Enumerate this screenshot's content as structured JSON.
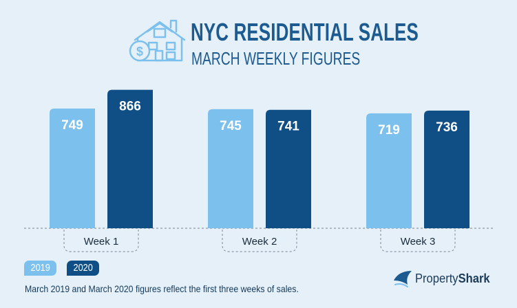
{
  "header": {
    "title": "NYC RESIDENTIAL SALES",
    "subtitle": "MARCH WEEKLY FIGURES"
  },
  "colors": {
    "series_2019": "#7cc1ee",
    "series_2020": "#0f4f86",
    "background": "#e6f0f8",
    "title": "#1c5a8f"
  },
  "chart_data": {
    "type": "bar",
    "title": "NYC RESIDENTIAL SALES",
    "subtitle": "MARCH WEEKLY FIGURES",
    "categories": [
      "Week 1",
      "Week 2",
      "Week 3"
    ],
    "series": [
      {
        "name": "2019",
        "values": [
          749,
          745,
          719
        ]
      },
      {
        "name": "2020",
        "values": [
          866,
          741,
          736
        ]
      }
    ],
    "xlabel": "",
    "ylabel": "",
    "grid": false,
    "legend_position": "bottom-left"
  },
  "legend": {
    "items": [
      "2019",
      "2020"
    ]
  },
  "footnote": "March 2019 and March 2020 figures reflect the first three weeks of sales.",
  "logo": {
    "icon": "shark-fin-icon",
    "text_regular": "Property",
    "text_bold": "Shark"
  }
}
